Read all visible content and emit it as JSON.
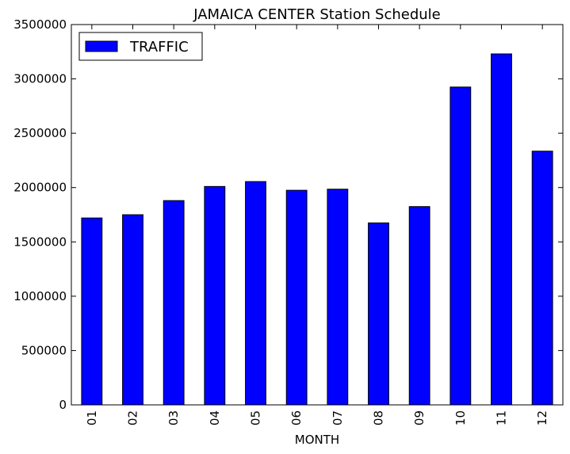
{
  "chart_data": {
    "type": "bar",
    "title": "JAMAICA CENTER Station Schedule",
    "xlabel": "MONTH",
    "ylabel": "",
    "categories": [
      "01",
      "02",
      "03",
      "04",
      "05",
      "06",
      "07",
      "08",
      "09",
      "10",
      "11",
      "12"
    ],
    "series": [
      {
        "name": "TRAFFIC",
        "values": [
          1720000,
          1750000,
          1880000,
          2010000,
          2055000,
          1975000,
          1985000,
          1675000,
          1825000,
          2925000,
          3230000,
          2335000
        ],
        "color": "#0000ff"
      }
    ],
    "ylim": [
      0,
      3500000
    ],
    "yticks": [
      0,
      500000,
      1000000,
      1500000,
      2000000,
      2500000,
      3000000,
      3500000
    ],
    "ytick_labels": [
      "0",
      "500000",
      "1000000",
      "1500000",
      "2000000",
      "2500000",
      "3000000",
      "3500000"
    ],
    "grid": false,
    "legend_position": "top-left"
  }
}
